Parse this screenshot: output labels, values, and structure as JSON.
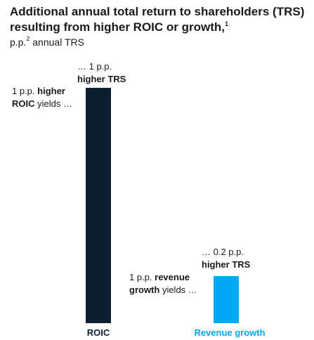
{
  "header": {
    "title": "Additional annual total return to shareholders (TRS) resulting from higher ROIC or growth,",
    "title_footnote": "1",
    "subtitle_prefix": "p.p.",
    "subtitle_footnote": "2",
    "subtitle_suffix": " annual TRS"
  },
  "chart_data": {
    "type": "bar",
    "categories": [
      "ROIC",
      "Revenue growth"
    ],
    "values": [
      1,
      0.2
    ],
    "unit": "p.p. annual TRS",
    "ylim": [
      0,
      1
    ],
    "grid": false,
    "legend": "none",
    "colors": [
      "#0e1f2f",
      "#00a9f4"
    ],
    "category_label_colors": [
      "#0e1f2f",
      "#00a9f4"
    ],
    "annotations": [
      {
        "label": {
          "line1_plain": "1 p.p. ",
          "line1_bold": "higher",
          "line2_bold": "ROIC",
          "line2_plain": " yields …"
        },
        "value": {
          "line1_plain": "… 1 p.p.",
          "line2_bold": "higher TRS"
        }
      },
      {
        "label": {
          "line1_plain": "1 p.p. ",
          "line1_bold": "revenue",
          "line2_bold": "growth",
          "line2_plain": " yields …"
        },
        "value": {
          "line1_plain": "… 0.2 p.p.",
          "line2_bold": "higher TRS"
        }
      }
    ]
  }
}
